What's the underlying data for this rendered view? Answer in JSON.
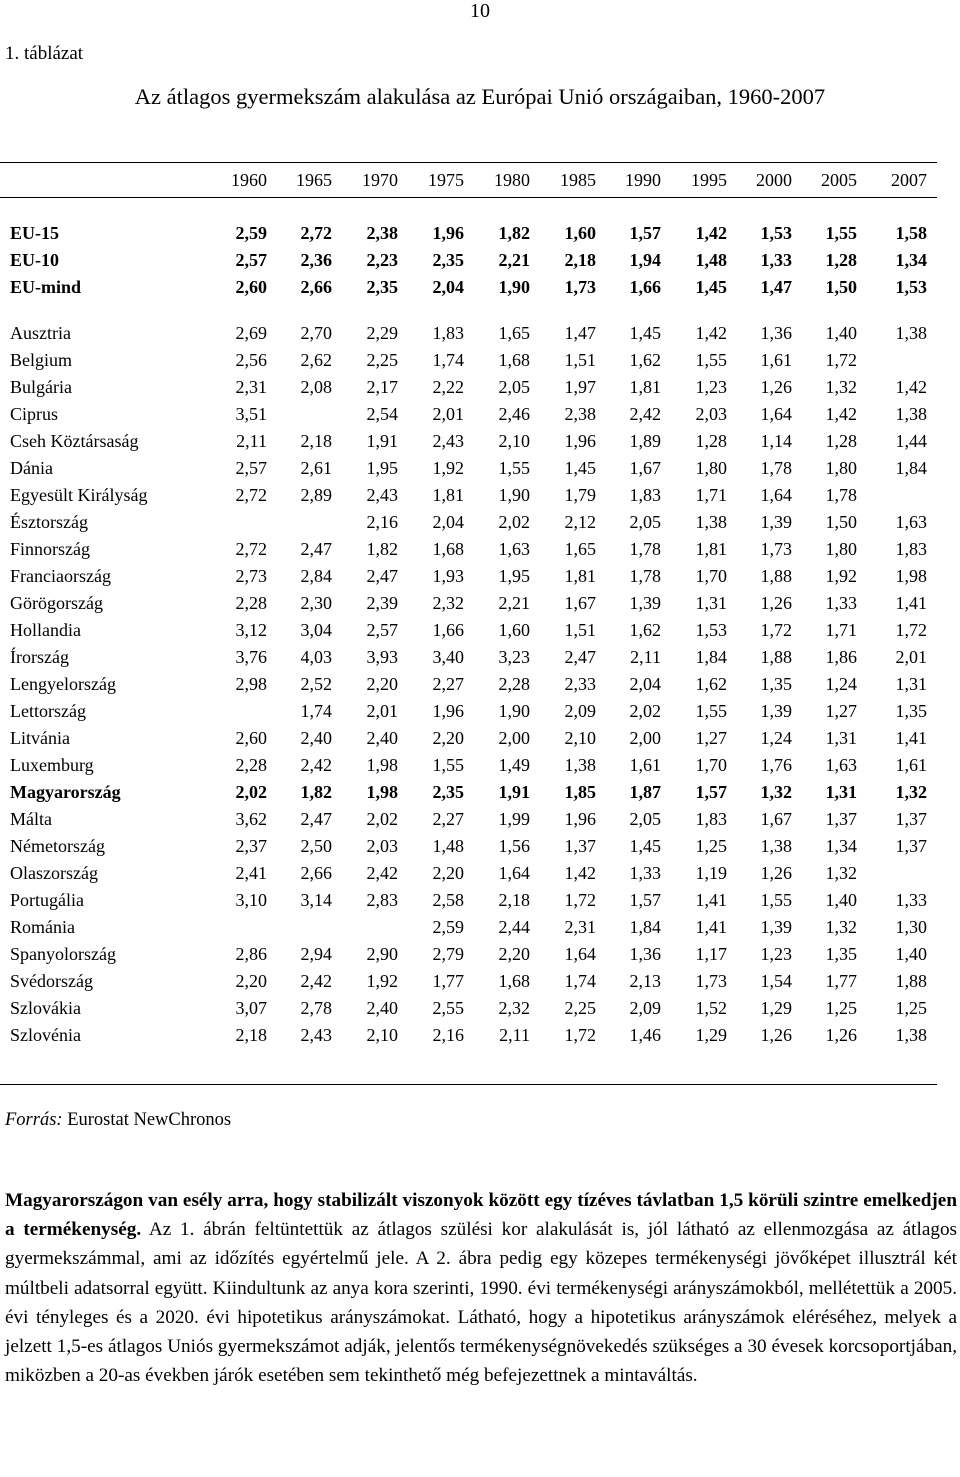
{
  "page_number": "10",
  "table_label": "1. táblázat",
  "table_title": "Az átlagos gyermekszám alakulása az Európai Unió országaiban, 1960-2007",
  "years": [
    "1960",
    "1965",
    "1970",
    "1975",
    "1980",
    "1985",
    "1990",
    "1995",
    "2000",
    "2005",
    "2007"
  ],
  "aggregates": [
    {
      "name": "EU-15",
      "values": [
        "2,59",
        "2,72",
        "2,38",
        "1,96",
        "1,82",
        "1,60",
        "1,57",
        "1,42",
        "1,53",
        "1,55",
        "1,58"
      ]
    },
    {
      "name": "EU-10",
      "values": [
        "2,57",
        "2,36",
        "2,23",
        "2,35",
        "2,21",
        "2,18",
        "1,94",
        "1,48",
        "1,33",
        "1,28",
        "1,34"
      ]
    },
    {
      "name": "EU-mind",
      "values": [
        "2,60",
        "2,66",
        "2,35",
        "2,04",
        "1,90",
        "1,73",
        "1,66",
        "1,45",
        "1,47",
        "1,50",
        "1,53"
      ]
    }
  ],
  "countries": [
    {
      "name": "Ausztria",
      "values": [
        "2,69",
        "2,70",
        "2,29",
        "1,83",
        "1,65",
        "1,47",
        "1,45",
        "1,42",
        "1,36",
        "1,40",
        "1,38"
      ]
    },
    {
      "name": "Belgium",
      "values": [
        "2,56",
        "2,62",
        "2,25",
        "1,74",
        "1,68",
        "1,51",
        "1,62",
        "1,55",
        "1,61",
        "1,72",
        ""
      ]
    },
    {
      "name": "Bulgária",
      "values": [
        "2,31",
        "2,08",
        "2,17",
        "2,22",
        "2,05",
        "1,97",
        "1,81",
        "1,23",
        "1,26",
        "1,32",
        "1,42"
      ]
    },
    {
      "name": "Ciprus",
      "values": [
        "3,51",
        "",
        "2,54",
        "2,01",
        "2,46",
        "2,38",
        "2,42",
        "2,03",
        "1,64",
        "1,42",
        "1,38"
      ]
    },
    {
      "name": "Cseh Köztársaság",
      "values": [
        "2,11",
        "2,18",
        "1,91",
        "2,43",
        "2,10",
        "1,96",
        "1,89",
        "1,28",
        "1,14",
        "1,28",
        "1,44"
      ]
    },
    {
      "name": "Dánia",
      "values": [
        "2,57",
        "2,61",
        "1,95",
        "1,92",
        "1,55",
        "1,45",
        "1,67",
        "1,80",
        "1,78",
        "1,80",
        "1,84"
      ]
    },
    {
      "name": "Egyesült Királyság",
      "values": [
        "2,72",
        "2,89",
        "2,43",
        "1,81",
        "1,90",
        "1,79",
        "1,83",
        "1,71",
        "1,64",
        "1,78",
        ""
      ]
    },
    {
      "name": "Észtország",
      "values": [
        "",
        "",
        "2,16",
        "2,04",
        "2,02",
        "2,12",
        "2,05",
        "1,38",
        "1,39",
        "1,50",
        "1,63"
      ]
    },
    {
      "name": "Finnország",
      "values": [
        "2,72",
        "2,47",
        "1,82",
        "1,68",
        "1,63",
        "1,65",
        "1,78",
        "1,81",
        "1,73",
        "1,80",
        "1,83"
      ]
    },
    {
      "name": "Franciaország",
      "values": [
        "2,73",
        "2,84",
        "2,47",
        "1,93",
        "1,95",
        "1,81",
        "1,78",
        "1,70",
        "1,88",
        "1,92",
        "1,98"
      ]
    },
    {
      "name": "Görögország",
      "values": [
        "2,28",
        "2,30",
        "2,39",
        "2,32",
        "2,21",
        "1,67",
        "1,39",
        "1,31",
        "1,26",
        "1,33",
        "1,41"
      ]
    },
    {
      "name": "Hollandia",
      "values": [
        "3,12",
        "3,04",
        "2,57",
        "1,66",
        "1,60",
        "1,51",
        "1,62",
        "1,53",
        "1,72",
        "1,71",
        "1,72"
      ]
    },
    {
      "name": "Írország",
      "values": [
        "3,76",
        "4,03",
        "3,93",
        "3,40",
        "3,23",
        "2,47",
        "2,11",
        "1,84",
        "1,88",
        "1,86",
        "2,01"
      ]
    },
    {
      "name": "Lengyelország",
      "values": [
        "2,98",
        "2,52",
        "2,20",
        "2,27",
        "2,28",
        "2,33",
        "2,04",
        "1,62",
        "1,35",
        "1,24",
        "1,31"
      ]
    },
    {
      "name": "Lettország",
      "values": [
        "",
        "1,74",
        "2,01",
        "1,96",
        "1,90",
        "2,09",
        "2,02",
        "1,55",
        "1,39",
        "1,27",
        "1,35"
      ]
    },
    {
      "name": "Litvánia",
      "values": [
        "2,60",
        "2,40",
        "2,40",
        "2,20",
        "2,00",
        "2,10",
        "2,00",
        "1,27",
        "1,24",
        "1,31",
        "1,41"
      ]
    },
    {
      "name": "Luxemburg",
      "values": [
        "2,28",
        "2,42",
        "1,98",
        "1,55",
        "1,49",
        "1,38",
        "1,61",
        "1,70",
        "1,76",
        "1,63",
        "1,61"
      ]
    },
    {
      "name": "Magyarország",
      "values": [
        "2,02",
        "1,82",
        "1,98",
        "2,35",
        "1,91",
        "1,85",
        "1,87",
        "1,57",
        "1,32",
        "1,31",
        "1,32"
      ],
      "bold": true
    },
    {
      "name": "Málta",
      "values": [
        "3,62",
        "2,47",
        "2,02",
        "2,27",
        "1,99",
        "1,96",
        "2,05",
        "1,83",
        "1,67",
        "1,37",
        "1,37"
      ]
    },
    {
      "name": "Németország",
      "values": [
        "2,37",
        "2,50",
        "2,03",
        "1,48",
        "1,56",
        "1,37",
        "1,45",
        "1,25",
        "1,38",
        "1,34",
        "1,37"
      ]
    },
    {
      "name": "Olaszország",
      "values": [
        "2,41",
        "2,66",
        "2,42",
        "2,20",
        "1,64",
        "1,42",
        "1,33",
        "1,19",
        "1,26",
        "1,32",
        ""
      ]
    },
    {
      "name": "Portugália",
      "values": [
        "3,10",
        "3,14",
        "2,83",
        "2,58",
        "2,18",
        "1,72",
        "1,57",
        "1,41",
        "1,55",
        "1,40",
        "1,33"
      ]
    },
    {
      "name": "Románia",
      "values": [
        "",
        "",
        "",
        "2,59",
        "2,44",
        "2,31",
        "1,84",
        "1,41",
        "1,39",
        "1,32",
        "1,30"
      ]
    },
    {
      "name": "Spanyolország",
      "values": [
        "2,86",
        "2,94",
        "2,90",
        "2,79",
        "2,20",
        "1,64",
        "1,36",
        "1,17",
        "1,23",
        "1,35",
        "1,40"
      ]
    },
    {
      "name": "Svédország",
      "values": [
        "2,20",
        "2,42",
        "1,92",
        "1,77",
        "1,68",
        "1,74",
        "2,13",
        "1,73",
        "1,54",
        "1,77",
        "1,88"
      ]
    },
    {
      "name": "Szlovákia",
      "values": [
        "3,07",
        "2,78",
        "2,40",
        "2,55",
        "2,32",
        "2,25",
        "2,09",
        "1,52",
        "1,29",
        "1,25",
        "1,25"
      ]
    },
    {
      "name": "Szlovénia",
      "values": [
        "2,18",
        "2,43",
        "2,10",
        "2,16",
        "2,11",
        "1,72",
        "1,46",
        "1,29",
        "1,26",
        "1,26",
        "1,38"
      ]
    }
  ],
  "source": {
    "label": "Forrás:",
    "text": "Eurostat NewChronos"
  },
  "paragraph": {
    "lead": "Magyarországon van esély arra, hogy stabilizált viszonyok között egy tízéves távlatban 1,5 körüli szintre emelkedjen a termékenység.",
    "rest": " Az 1. ábrán feltüntettük az átlagos szülési kor alakulását is, jól látható az ellenmozgása az átlagos gyermekszámmal, ami az időzítés egyértelmű jele. A 2. ábra pedig egy közepes termékenységi jövőképet illusztrál két múltbeli adatsorral együtt. Kiindultunk az anya kora szerinti, 1990. évi termékenységi arányszámokból, mellétettük a 2005. évi tényleges és a 2020. évi hipotetikus arányszámokat. Látható, hogy a hipotetikus arányszámok eléréséhez, melyek a jelzett 1,5-es átlagos Uniós gyermekszámot adják, jelentős termékenységnövekedés szükséges a 30 évesek korcsoportjában, miközben a 20-as években járók esetében sem tekinthető még befejezettnek a mintaváltás."
  }
}
